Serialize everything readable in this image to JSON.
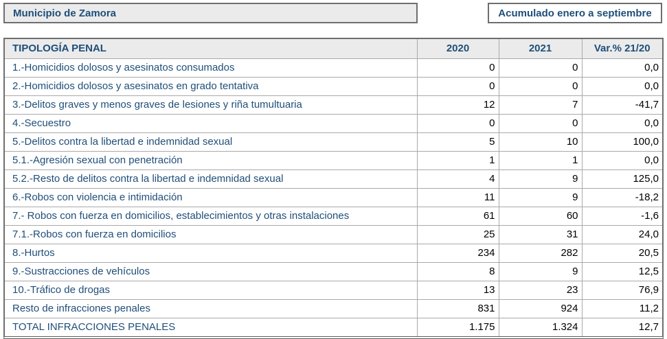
{
  "colors": {
    "accent_blue": "#1f4e79",
    "header_bg": "#ebebeb",
    "outer_border": "#6e6e6e",
    "inner_border": "#a9a9a9",
    "number_text": "#000000"
  },
  "header": {
    "municipality_label": "Municipio de Zamora",
    "period_label": "Acumulado enero a septiembre"
  },
  "table": {
    "columns": [
      "TIPOLOGÍA PENAL",
      "2020",
      "2021",
      "Var.% 21/20"
    ],
    "rows": [
      {
        "label": "1.-Homicidios dolosos y asesinatos consumados",
        "y2020": "0",
        "y2021": "0",
        "var": "0,0",
        "is_total": false
      },
      {
        "label": "2.-Homicidios dolosos y asesinatos en grado tentativa",
        "y2020": "0",
        "y2021": "0",
        "var": "0,0",
        "is_total": false
      },
      {
        "label": "3.-Delitos graves y menos graves de lesiones y riña tumultuaria",
        "y2020": "12",
        "y2021": "7",
        "var": "-41,7",
        "is_total": false
      },
      {
        "label": "4.-Secuestro",
        "y2020": "0",
        "y2021": "0",
        "var": "0,0",
        "is_total": false
      },
      {
        "label": "5.-Delitos contra la libertad e indemnidad sexual",
        "y2020": "5",
        "y2021": "10",
        "var": "100,0",
        "is_total": false
      },
      {
        "label": "5.1.-Agresión sexual con penetración",
        "y2020": "1",
        "y2021": "1",
        "var": "0,0",
        "is_total": false
      },
      {
        "label": "5.2.-Resto de delitos contra la libertad e indemnidad sexual",
        "y2020": "4",
        "y2021": "9",
        "var": "125,0",
        "is_total": false
      },
      {
        "label": "6.-Robos con violencia e intimidación",
        "y2020": "11",
        "y2021": "9",
        "var": "-18,2",
        "is_total": false
      },
      {
        "label": "7.- Robos con fuerza en domicilios, establecimientos y otras instalaciones",
        "y2020": "61",
        "y2021": "60",
        "var": "-1,6",
        "is_total": false
      },
      {
        "label": "7.1.-Robos con fuerza en domicilios",
        "y2020": "25",
        "y2021": "31",
        "var": "24,0",
        "is_total": false
      },
      {
        "label": "8.-Hurtos",
        "y2020": "234",
        "y2021": "282",
        "var": "20,5",
        "is_total": false
      },
      {
        "label": "9.-Sustracciones de vehículos",
        "y2020": "8",
        "y2021": "9",
        "var": "12,5",
        "is_total": false
      },
      {
        "label": "10.-Tráfico de drogas",
        "y2020": "13",
        "y2021": "23",
        "var": "76,9",
        "is_total": false
      },
      {
        "label": "Resto de infracciones penales",
        "y2020": "831",
        "y2021": "924",
        "var": "11,2",
        "is_total": false
      },
      {
        "label": "TOTAL INFRACCIONES PENALES",
        "y2020": "1.175",
        "y2021": "1.324",
        "var": "12,7",
        "is_total": true
      }
    ]
  }
}
